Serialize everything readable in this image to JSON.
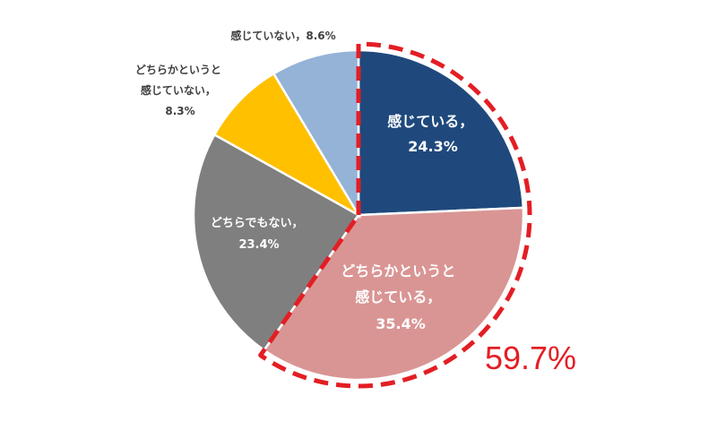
{
  "chart_data": {
    "type": "pie",
    "categories": [
      "感じている，",
      "どちらかというと 感じている，",
      "どちらでもない，",
      "どちらかというと 感じていない，",
      "感じていない，"
    ],
    "values": [
      24.3,
      35.4,
      23.4,
      8.3,
      8.6
    ],
    "value_labels": [
      "24.3%",
      "35.4%",
      "23.4%",
      "8.3%",
      "8.6%"
    ],
    "colors": [
      "#1f497d",
      "#d99594",
      "#7f7f7f",
      "#ffc000",
      "#95b3d7"
    ],
    "highlight": {
      "label": "59.7%",
      "color": "#e31e24",
      "covers": [
        "感じている，",
        "どちらかというと 感じている，"
      ]
    },
    "start_angle_deg": 0,
    "direction": "clockwise"
  },
  "labels": {
    "s0": {
      "line1": "感じている，",
      "line2": "24.3%"
    },
    "s1": {
      "line1": "どちらかというと",
      "line2": "感じている，",
      "line3": "35.4%"
    },
    "s2": {
      "line1": "どちらでもない，",
      "line2": "23.4%"
    },
    "s3": {
      "line1": "どちらかというと",
      "line2": "感じていない，",
      "line3": "8.3%"
    },
    "s4": {
      "line1": "感じていない，8.6%"
    }
  }
}
